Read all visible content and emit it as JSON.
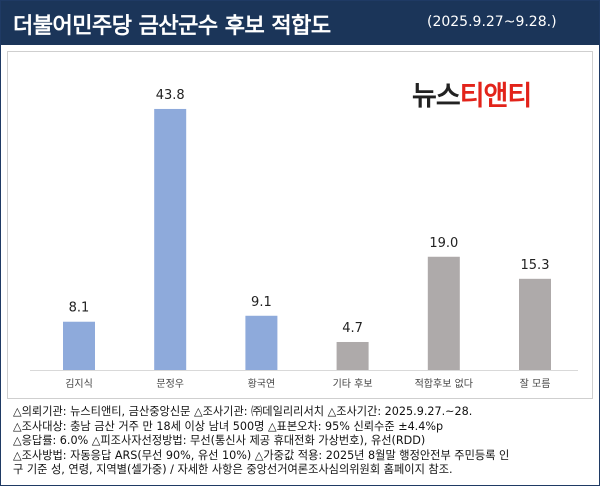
{
  "header": {
    "title": "더불어민주당 금산군수 후보 적합도",
    "date": "(2025.9.27~9.28.)"
  },
  "logo": {
    "part1": "뉴스",
    "part2": "티앤티"
  },
  "colors": {
    "candidate": "#8eaadb",
    "other": "#aeaaaa",
    "header": "#1b3559",
    "logo_red": "#e2231a"
  },
  "chart_data": {
    "type": "bar",
    "categories": [
      "김지식",
      "문정우",
      "황국연",
      "기타 후보",
      "적합후보 없다",
      "잘 모름"
    ],
    "values": [
      8.1,
      43.8,
      9.1,
      4.7,
      19.0,
      15.3
    ],
    "value_labels": [
      "8.1",
      "43.8",
      "9.1",
      "4.7",
      "19.0",
      "15.3"
    ],
    "bar_colors": [
      "#8eaadb",
      "#8eaadb",
      "#8eaadb",
      "#aeaaaa",
      "#aeaaaa",
      "#aeaaaa"
    ],
    "ylim": [
      0,
      50
    ],
    "grid": false,
    "legend": "none"
  },
  "notes": [
    "△의뢰기관: 뉴스티앤티, 금산중앙신문 △조사기관: ㈜데일리리서치 △조사기간: 2025.9.27.~28.",
    "△조사대상: 충남 금산 거주 만 18세 이상 남녀 500명 △표본오차: 95% 신뢰수준 ±4.4%p",
    "△응답률: 6.0% △피조사자선정방법: 무선(통신사 제공 휴대전화 가상번호), 유선(RDD)",
    "△조사방법: 자동응답 ARS(무선 90%, 유선 10%) △가중값 적용: 2025년 8월말 행정안전부 주민등록 인",
    "구 기준 성, 연령, 지역별(셀가중) / 자세한 사항은 중앙선거여론조사심의위원회 홈페이지 참조."
  ]
}
